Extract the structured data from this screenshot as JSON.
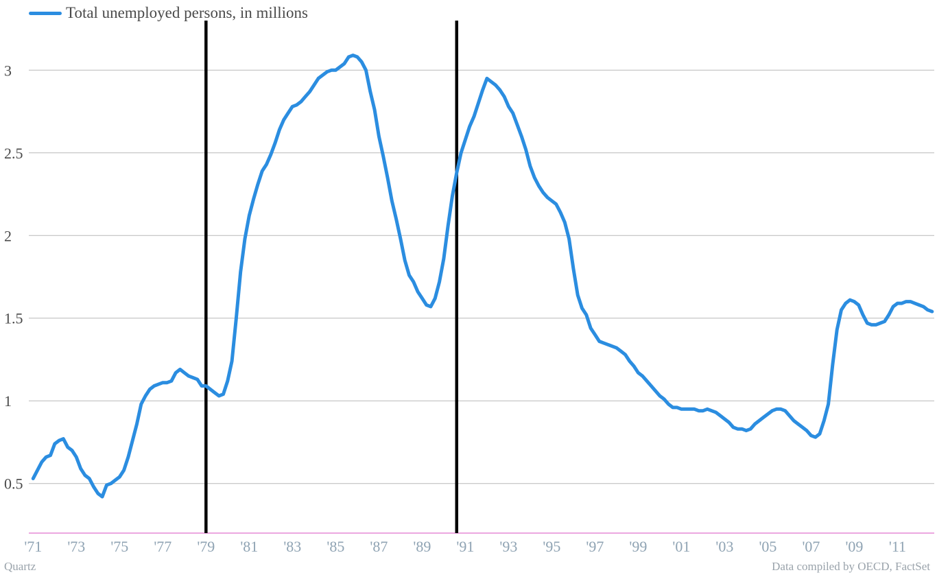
{
  "chart_data": {
    "type": "line",
    "title": "",
    "xlabel": "",
    "ylabel": "",
    "xlim": [
      1970.8,
      2012.7
    ],
    "ylim": [
      0.2,
      3.3
    ],
    "grid": true,
    "legend_position": "top-left",
    "yticks": [
      {
        "value": 0.5,
        "label": "0.5"
      },
      {
        "value": 1,
        "label": "1"
      },
      {
        "value": 1.5,
        "label": "1.5"
      },
      {
        "value": 2,
        "label": "2"
      },
      {
        "value": 2.5,
        "label": "2.5"
      },
      {
        "value": 3,
        "label": "3"
      }
    ],
    "xticks": [
      {
        "value": 1971,
        "label": "'71"
      },
      {
        "value": 1973,
        "label": "'73"
      },
      {
        "value": 1975,
        "label": "'75"
      },
      {
        "value": 1977,
        "label": "'77"
      },
      {
        "value": 1979,
        "label": "'79"
      },
      {
        "value": 1981,
        "label": "'81"
      },
      {
        "value": 1983,
        "label": "'83"
      },
      {
        "value": 1985,
        "label": "'85"
      },
      {
        "value": 1987,
        "label": "'87"
      },
      {
        "value": 1989,
        "label": "'89"
      },
      {
        "value": 1991,
        "label": "'91"
      },
      {
        "value": 1993,
        "label": "'93"
      },
      {
        "value": 1995,
        "label": "'95"
      },
      {
        "value": 1997,
        "label": "'97"
      },
      {
        "value": 1999,
        "label": "'99"
      },
      {
        "value": 2001,
        "label": "'01"
      },
      {
        "value": 2003,
        "label": "'03"
      },
      {
        "value": 2005,
        "label": "'05"
      },
      {
        "value": 2007,
        "label": "'07"
      },
      {
        "value": 2009,
        "label": "'09"
      },
      {
        "value": 2011,
        "label": "'11"
      }
    ],
    "vertical_markers": [
      1979.0,
      1990.6
    ],
    "series": [
      {
        "name": "Total unemployed persons, in millions",
        "color": "#2b8de0",
        "x": [
          1971.0,
          1971.2,
          1971.4,
          1971.6,
          1971.8,
          1972.0,
          1972.2,
          1972.4,
          1972.6,
          1972.8,
          1973.0,
          1973.2,
          1973.4,
          1973.6,
          1973.8,
          1974.0,
          1974.2,
          1974.4,
          1974.6,
          1974.8,
          1975.0,
          1975.2,
          1975.4,
          1975.6,
          1975.8,
          1976.0,
          1976.2,
          1976.4,
          1976.6,
          1976.8,
          1977.0,
          1977.2,
          1977.4,
          1977.6,
          1977.8,
          1978.0,
          1978.2,
          1978.4,
          1978.6,
          1978.8,
          1979.0,
          1979.2,
          1979.4,
          1979.6,
          1979.8,
          1980.0,
          1980.2,
          1980.4,
          1980.6,
          1980.8,
          1981.0,
          1981.2,
          1981.4,
          1981.6,
          1981.8,
          1982.0,
          1982.2,
          1982.4,
          1982.6,
          1982.8,
          1983.0,
          1983.2,
          1983.4,
          1983.6,
          1983.8,
          1984.0,
          1984.2,
          1984.4,
          1984.6,
          1984.8,
          1985.0,
          1985.2,
          1985.4,
          1985.6,
          1985.8,
          1986.0,
          1986.2,
          1986.4,
          1986.6,
          1986.8,
          1987.0,
          1987.2,
          1987.4,
          1987.6,
          1987.8,
          1988.0,
          1988.2,
          1988.4,
          1988.6,
          1988.8,
          1989.0,
          1989.2,
          1989.4,
          1989.6,
          1989.8,
          1990.0,
          1990.2,
          1990.4,
          1990.6,
          1990.8,
          1991.0,
          1991.2,
          1991.4,
          1991.6,
          1991.8,
          1992.0,
          1992.2,
          1992.4,
          1992.6,
          1992.8,
          1993.0,
          1993.2,
          1993.4,
          1993.6,
          1993.8,
          1994.0,
          1994.2,
          1994.4,
          1994.6,
          1994.8,
          1995.0,
          1995.2,
          1995.4,
          1995.6,
          1995.8,
          1996.0,
          1996.2,
          1996.4,
          1996.6,
          1996.8,
          1997.0,
          1997.2,
          1997.4,
          1997.6,
          1997.8,
          1998.0,
          1998.2,
          1998.4,
          1998.6,
          1998.8,
          1999.0,
          1999.2,
          1999.4,
          1999.6,
          1999.8,
          2000.0,
          2000.2,
          2000.4,
          2000.6,
          2000.8,
          2001.0,
          2001.2,
          2001.4,
          2001.6,
          2001.8,
          2002.0,
          2002.2,
          2002.4,
          2002.6,
          2002.8,
          2003.0,
          2003.2,
          2003.4,
          2003.6,
          2003.8,
          2004.0,
          2004.2,
          2004.4,
          2004.6,
          2004.8,
          2005.0,
          2005.2,
          2005.4,
          2005.6,
          2005.8,
          2006.0,
          2006.2,
          2006.4,
          2006.6,
          2006.8,
          2007.0,
          2007.2,
          2007.4,
          2007.6,
          2007.8,
          2008.0,
          2008.2,
          2008.4,
          2008.6,
          2008.8,
          2009.0,
          2009.2,
          2009.4,
          2009.6,
          2009.8,
          2010.0,
          2010.2,
          2010.4,
          2010.6,
          2010.8,
          2011.0,
          2011.2,
          2011.4,
          2011.6,
          2011.8,
          2012.0,
          2012.2,
          2012.4,
          2012.6
        ],
        "values": [
          0.53,
          0.58,
          0.63,
          0.66,
          0.67,
          0.74,
          0.76,
          0.77,
          0.72,
          0.7,
          0.66,
          0.59,
          0.55,
          0.53,
          0.48,
          0.44,
          0.42,
          0.49,
          0.5,
          0.52,
          0.54,
          0.58,
          0.66,
          0.76,
          0.86,
          0.98,
          1.03,
          1.07,
          1.09,
          1.1,
          1.11,
          1.11,
          1.12,
          1.17,
          1.19,
          1.17,
          1.15,
          1.14,
          1.13,
          1.09,
          1.09,
          1.07,
          1.05,
          1.03,
          1.04,
          1.12,
          1.24,
          1.5,
          1.78,
          1.98,
          2.12,
          2.22,
          2.31,
          2.39,
          2.43,
          2.49,
          2.56,
          2.64,
          2.7,
          2.74,
          2.78,
          2.79,
          2.81,
          2.84,
          2.87,
          2.91,
          2.95,
          2.97,
          2.99,
          3.0,
          3.0,
          3.02,
          3.04,
          3.08,
          3.09,
          3.08,
          3.05,
          3.0,
          2.87,
          2.76,
          2.6,
          2.48,
          2.35,
          2.21,
          2.1,
          1.98,
          1.85,
          1.76,
          1.72,
          1.66,
          1.62,
          1.58,
          1.57,
          1.62,
          1.72,
          1.86,
          2.06,
          2.24,
          2.38,
          2.5,
          2.58,
          2.66,
          2.72,
          2.8,
          2.88,
          2.95,
          2.93,
          2.91,
          2.88,
          2.84,
          2.78,
          2.74,
          2.67,
          2.6,
          2.52,
          2.42,
          2.35,
          2.3,
          2.26,
          2.23,
          2.21,
          2.19,
          2.14,
          2.08,
          1.98,
          1.8,
          1.64,
          1.56,
          1.52,
          1.44,
          1.4,
          1.36,
          1.35,
          1.34,
          1.33,
          1.32,
          1.3,
          1.28,
          1.24,
          1.21,
          1.17,
          1.15,
          1.12,
          1.09,
          1.06,
          1.03,
          1.01,
          0.98,
          0.96,
          0.96,
          0.95,
          0.95,
          0.95,
          0.95,
          0.94,
          0.94,
          0.95,
          0.94,
          0.93,
          0.91,
          0.89,
          0.87,
          0.84,
          0.83,
          0.83,
          0.82,
          0.83,
          0.86,
          0.88,
          0.9,
          0.92,
          0.94,
          0.95,
          0.95,
          0.94,
          0.91,
          0.88,
          0.86,
          0.84,
          0.82,
          0.79,
          0.78,
          0.8,
          0.88,
          0.98,
          1.22,
          1.43,
          1.55,
          1.59,
          1.61,
          1.6,
          1.58,
          1.52,
          1.47,
          1.46,
          1.46,
          1.47,
          1.48,
          1.52,
          1.57,
          1.59,
          1.59,
          1.6,
          1.6,
          1.59,
          1.58,
          1.57,
          1.55,
          1.54
        ]
      }
    ]
  },
  "footer": {
    "source_left": "Quartz",
    "source_right": "Data compiled by OECD, FactSet"
  }
}
